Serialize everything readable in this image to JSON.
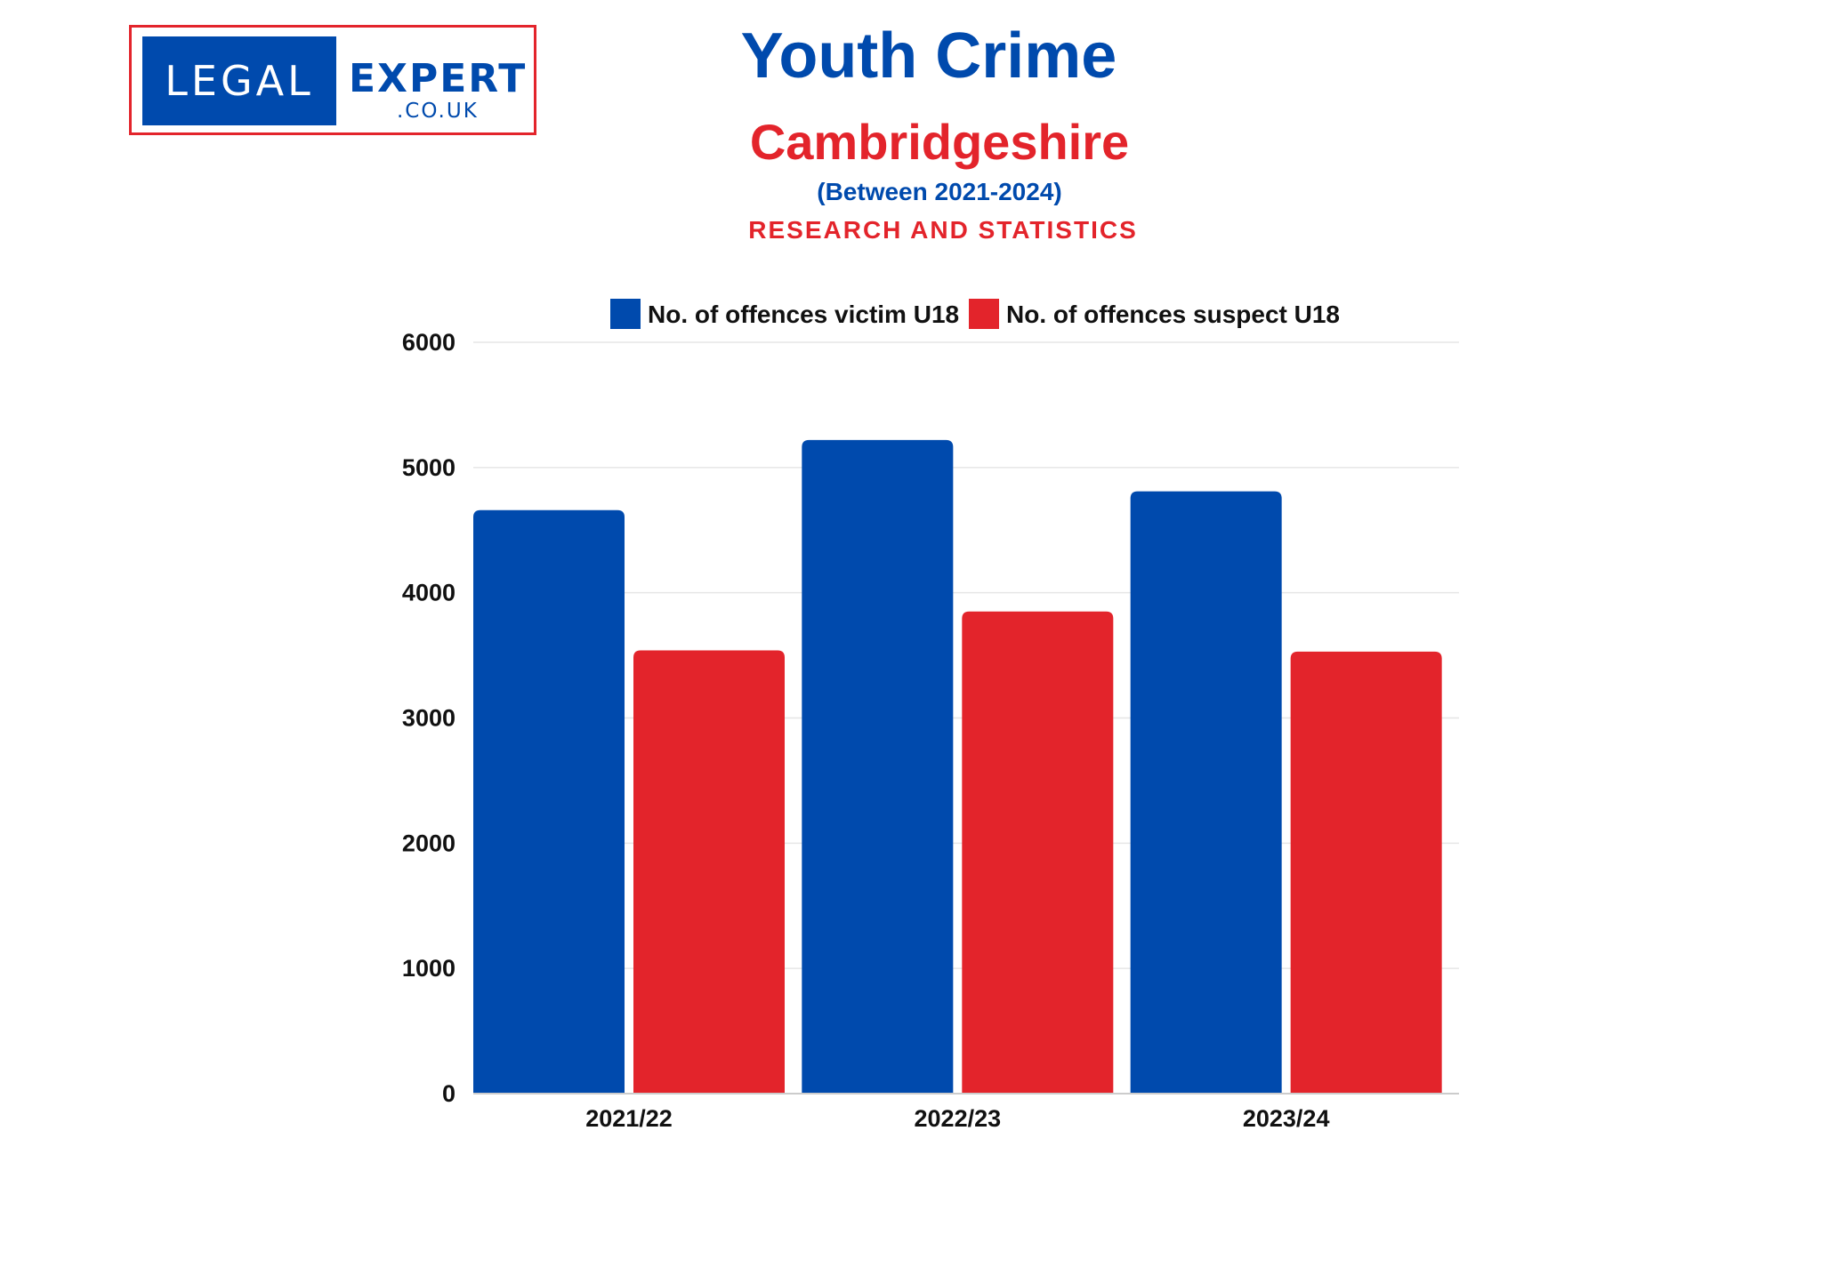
{
  "logo": {
    "word_left": "LEGAL",
    "word_right": "EXPERT",
    "domain": ".CO.UK"
  },
  "header": {
    "title": "Youth Crime",
    "region": "Cambridgeshire",
    "period": "(Between 2021-2024)",
    "subtitle": "RESEARCH AND STATISTICS"
  },
  "colors": {
    "victim": "#004aad",
    "suspect": "#e3242b",
    "grid": "#e6e6e6"
  },
  "chart_data": {
    "type": "bar",
    "categories": [
      "2021/22",
      "2022/23",
      "2023/24"
    ],
    "series": [
      {
        "name": "No. of offences victim U18",
        "values": [
          4660,
          5220,
          4810
        ]
      },
      {
        "name": "No. of offences suspect U18",
        "values": [
          3540,
          3850,
          3530
        ]
      }
    ],
    "ylim": [
      0,
      6000
    ],
    "yticks": [
      0,
      1000,
      2000,
      3000,
      4000,
      5000,
      6000
    ],
    "grid": true,
    "legend": "top"
  }
}
